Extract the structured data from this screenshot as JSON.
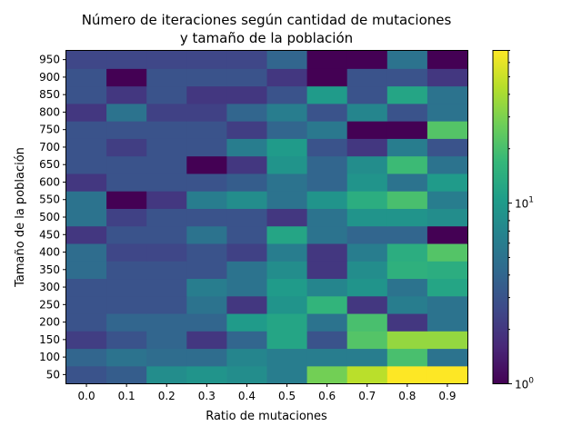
{
  "chart_data": {
    "type": "heatmap",
    "title": [
      "Número de iteraciones según cantidad de mutaciones",
      "y tamaño de la población"
    ],
    "xlabel": "Ratio de mutaciones",
    "ylabel": "Tamaño de la población",
    "x_ticks": [
      "0.0",
      "0.1",
      "0.2",
      "0.3",
      "0.4",
      "0.5",
      "0.6",
      "0.7",
      "0.8",
      "0.9"
    ],
    "y_ticks": [
      "50",
      "100",
      "150",
      "200",
      "250",
      "300",
      "350",
      "400",
      "450",
      "500",
      "550",
      "600",
      "650",
      "700",
      "750",
      "800",
      "850",
      "900",
      "950"
    ],
    "color_scale": "log",
    "colormap": "viridis",
    "colorbar_range": [
      1,
      70
    ],
    "colorbar_ticks": [
      {
        "value": 1,
        "base": "10",
        "exp": "0"
      },
      {
        "value": 10,
        "base": "10",
        "exp": "1"
      }
    ],
    "values": [
      [
        3.0,
        3.5,
        8.0,
        9.0,
        8.0,
        6.0,
        28.0,
        45.0,
        70.0,
        70.0
      ],
      [
        4.0,
        5.0,
        4.5,
        4.5,
        7.0,
        6.0,
        6.0,
        6.0,
        20.0,
        5.0
      ],
      [
        2.2,
        3.0,
        4.0,
        2.0,
        4.0,
        12.0,
        3.0,
        22.0,
        35.0,
        35.0
      ],
      [
        3.0,
        4.0,
        4.0,
        4.0,
        10.0,
        12.0,
        5.0,
        20.0,
        2.0,
        5.0
      ],
      [
        3.0,
        3.0,
        3.0,
        5.0,
        2.0,
        9.0,
        16.0,
        2.0,
        6.0,
        5.0
      ],
      [
        3.0,
        3.0,
        3.0,
        6.0,
        5.0,
        10.0,
        7.0,
        9.0,
        5.0,
        12.0
      ],
      [
        4.5,
        3.0,
        3.0,
        3.0,
        5.0,
        8.0,
        2.0,
        8.0,
        15.0,
        14.0
      ],
      [
        4.5,
        2.5,
        2.5,
        3.0,
        2.3,
        6.0,
        2.0,
        6.0,
        14.0,
        22.0
      ],
      [
        2.0,
        3.0,
        3.0,
        5.0,
        3.0,
        12.0,
        5.0,
        4.0,
        4.0,
        1.0
      ],
      [
        5.0,
        2.3,
        3.0,
        3.0,
        3.0,
        2.0,
        5.0,
        9.0,
        9.0,
        8.0
      ],
      [
        5.0,
        1.0,
        2.0,
        6.0,
        8.0,
        5.0,
        9.0,
        14.0,
        20.0,
        6.0
      ],
      [
        2.0,
        3.0,
        3.0,
        3.0,
        3.5,
        5.0,
        4.0,
        9.0,
        5.0,
        10.0
      ],
      [
        3.0,
        3.0,
        3.0,
        1.0,
        2.0,
        9.0,
        4.0,
        8.0,
        18.0,
        5.0
      ],
      [
        3.0,
        2.2,
        3.0,
        3.0,
        6.0,
        10.0,
        3.0,
        2.0,
        6.0,
        3.0
      ],
      [
        3.0,
        3.0,
        3.0,
        3.0,
        2.2,
        4.0,
        5.5,
        1.0,
        1.0,
        22.0
      ],
      [
        2.0,
        5.0,
        2.3,
        2.3,
        4.0,
        6.0,
        3.0,
        7.0,
        3.0,
        5.0
      ],
      [
        3.0,
        2.0,
        3.0,
        2.0,
        2.0,
        3.0,
        10.0,
        3.0,
        12.0,
        5.0
      ],
      [
        3.0,
        1.0,
        3.0,
        3.0,
        3.0,
        2.0,
        1.0,
        3.0,
        3.0,
        2.0
      ],
      [
        2.5,
        2.5,
        2.5,
        2.5,
        2.5,
        4.0,
        1.0,
        1.0,
        5.0,
        1.0
      ]
    ]
  }
}
